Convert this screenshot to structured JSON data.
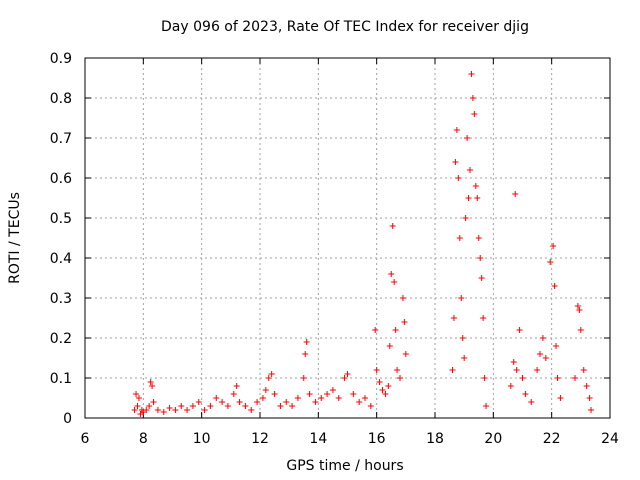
{
  "chart_data": {
    "type": "scatter",
    "title": "Day 096 of 2023, Rate Of TEC Index for receiver djig",
    "xlabel": "GPS time / hours",
    "ylabel": "ROTI / TECUs",
    "xlim": [
      6,
      24
    ],
    "ylim": [
      0,
      0.9
    ],
    "xticks": [
      "6",
      "8",
      "10",
      "12",
      "14",
      "16",
      "18",
      "20",
      "22",
      "24"
    ],
    "yticks": [
      "0",
      "0.1",
      "0.2",
      "0.3",
      "0.4",
      "0.5",
      "0.6",
      "0.7",
      "0.8",
      "0.9"
    ],
    "grid": true,
    "marker": "+",
    "color": "#ff0000",
    "series": [
      {
        "points": [
          [
            7.7,
            0.02
          ],
          [
            7.75,
            0.06
          ],
          [
            7.8,
            0.03
          ],
          [
            7.85,
            0.05
          ],
          [
            7.9,
            0.01
          ],
          [
            7.95,
            0.02
          ],
          [
            8.0,
            0.015
          ],
          [
            8.1,
            0.02
          ],
          [
            8.2,
            0.03
          ],
          [
            8.25,
            0.09
          ],
          [
            8.3,
            0.08
          ],
          [
            8.35,
            0.04
          ],
          [
            8.5,
            0.02
          ],
          [
            8.7,
            0.015
          ],
          [
            8.9,
            0.025
          ],
          [
            9.1,
            0.02
          ],
          [
            9.3,
            0.03
          ],
          [
            9.5,
            0.02
          ],
          [
            9.7,
            0.03
          ],
          [
            9.9,
            0.04
          ],
          [
            10.1,
            0.02
          ],
          [
            10.3,
            0.03
          ],
          [
            10.5,
            0.05
          ],
          [
            10.7,
            0.04
          ],
          [
            10.9,
            0.03
          ],
          [
            11.1,
            0.06
          ],
          [
            11.2,
            0.08
          ],
          [
            11.3,
            0.04
          ],
          [
            11.5,
            0.03
          ],
          [
            11.7,
            0.02
          ],
          [
            11.9,
            0.04
          ],
          [
            12.1,
            0.05
          ],
          [
            12.2,
            0.07
          ],
          [
            12.3,
            0.1
          ],
          [
            12.4,
            0.11
          ],
          [
            12.5,
            0.06
          ],
          [
            12.7,
            0.03
          ],
          [
            12.9,
            0.04
          ],
          [
            13.1,
            0.03
          ],
          [
            13.3,
            0.05
          ],
          [
            13.5,
            0.1
          ],
          [
            13.55,
            0.16
          ],
          [
            13.6,
            0.19
          ],
          [
            13.7,
            0.06
          ],
          [
            13.9,
            0.04
          ],
          [
            14.1,
            0.05
          ],
          [
            14.3,
            0.06
          ],
          [
            14.5,
            0.07
          ],
          [
            14.7,
            0.05
          ],
          [
            14.9,
            0.1
          ],
          [
            15.0,
            0.11
          ],
          [
            15.2,
            0.06
          ],
          [
            15.4,
            0.04
          ],
          [
            15.6,
            0.05
          ],
          [
            15.8,
            0.03
          ],
          [
            15.95,
            0.22
          ],
          [
            16.0,
            0.12
          ],
          [
            16.1,
            0.09
          ],
          [
            16.2,
            0.07
          ],
          [
            16.3,
            0.06
          ],
          [
            16.4,
            0.08
          ],
          [
            16.45,
            0.18
          ],
          [
            16.5,
            0.36
          ],
          [
            16.55,
            0.48
          ],
          [
            16.6,
            0.34
          ],
          [
            16.65,
            0.22
          ],
          [
            16.7,
            0.12
          ],
          [
            16.8,
            0.1
          ],
          [
            16.9,
            0.3
          ],
          [
            16.95,
            0.24
          ],
          [
            17.0,
            0.16
          ],
          [
            18.6,
            0.12
          ],
          [
            18.65,
            0.25
          ],
          [
            18.7,
            0.64
          ],
          [
            18.75,
            0.72
          ],
          [
            18.8,
            0.6
          ],
          [
            18.85,
            0.45
          ],
          [
            18.9,
            0.3
          ],
          [
            18.95,
            0.2
          ],
          [
            19.0,
            0.15
          ],
          [
            19.05,
            0.5
          ],
          [
            19.1,
            0.7
          ],
          [
            19.15,
            0.55
          ],
          [
            19.2,
            0.62
          ],
          [
            19.25,
            0.86
          ],
          [
            19.3,
            0.8
          ],
          [
            19.35,
            0.76
          ],
          [
            19.4,
            0.58
          ],
          [
            19.45,
            0.55
          ],
          [
            19.5,
            0.45
          ],
          [
            19.55,
            0.4
          ],
          [
            19.6,
            0.35
          ],
          [
            19.65,
            0.25
          ],
          [
            19.7,
            0.1
          ],
          [
            19.75,
            0.03
          ],
          [
            20.6,
            0.08
          ],
          [
            20.7,
            0.14
          ],
          [
            20.75,
            0.56
          ],
          [
            20.8,
            0.12
          ],
          [
            20.9,
            0.22
          ],
          [
            21.0,
            0.1
          ],
          [
            21.1,
            0.06
          ],
          [
            21.3,
            0.04
          ],
          [
            21.5,
            0.12
          ],
          [
            21.6,
            0.16
          ],
          [
            21.7,
            0.2
          ],
          [
            21.8,
            0.15
          ],
          [
            21.95,
            0.39
          ],
          [
            22.05,
            0.43
          ],
          [
            22.1,
            0.33
          ],
          [
            22.15,
            0.18
          ],
          [
            22.2,
            0.1
          ],
          [
            22.3,
            0.05
          ],
          [
            22.8,
            0.1
          ],
          [
            22.9,
            0.28
          ],
          [
            22.95,
            0.27
          ],
          [
            23.0,
            0.22
          ],
          [
            23.1,
            0.12
          ],
          [
            23.2,
            0.08
          ],
          [
            23.3,
            0.05
          ],
          [
            23.35,
            0.02
          ]
        ]
      }
    ]
  }
}
